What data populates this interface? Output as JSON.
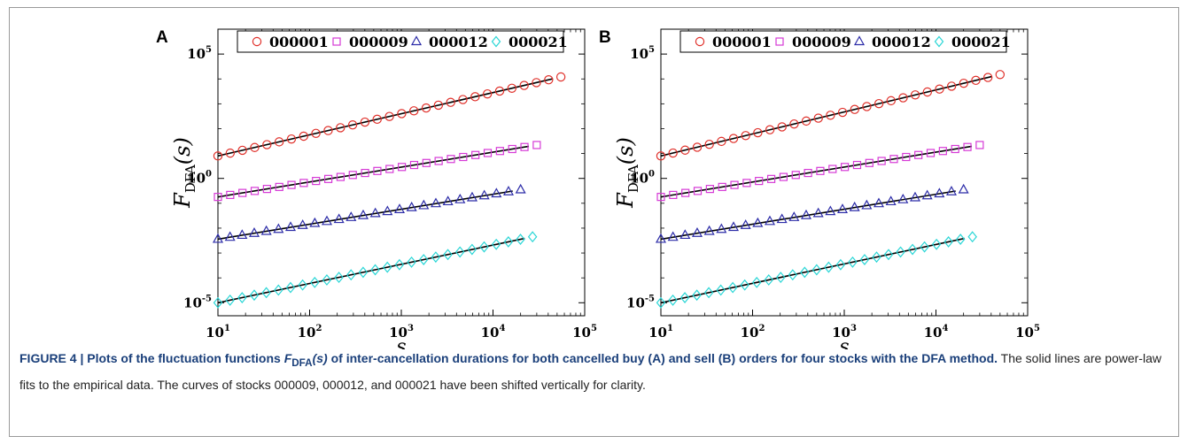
{
  "caption": {
    "title_part1": "FIGURE 4 | Plots of the fluctuation functions ",
    "title_symbol": "F",
    "title_symbol_sub": "DFA",
    "title_symbol_arg": "(s)",
    "title_part2": " of inter-cancellation durations for both cancelled buy (A) and sell (B) orders for four stocks with the DFA method.",
    "body": " The solid lines are power-law fits to the empirical data. The curves of stocks 000009, 000012, and 000021 have been shifted vertically for clarity."
  },
  "colors": {
    "000001": "#e0302a",
    "000009": "#d63ad6",
    "000012": "#2c2ca8",
    "000021": "#2ad6d6",
    "fit": "#000000"
  },
  "chart_data": [
    {
      "panel_label": "A",
      "type": "scatter",
      "log_x": true,
      "log_y": true,
      "xlabel": "s",
      "ylabel": "F_DFA(s)",
      "xlim": [
        10,
        100000
      ],
      "ylim": [
        3e-06,
        1000000
      ],
      "xticks": [
        "10^1",
        "10^2",
        "10^3",
        "10^4",
        "10^5"
      ],
      "yticks": [
        "10^-5",
        "10^0",
        "10^5"
      ],
      "legend_position": "top",
      "fit_lines": true,
      "series": [
        {
          "name": "000001",
          "marker": "circle",
          "x_start": 10,
          "x_end": 55000,
          "y_start": 8.0,
          "y_end": 12000,
          "n": 29
        },
        {
          "name": "000009",
          "marker": "square",
          "x_start": 10,
          "x_end": 30000,
          "y_start": 0.18,
          "y_end": 22,
          "n": 27
        },
        {
          "name": "000012",
          "marker": "triangle",
          "x_start": 10,
          "x_end": 20000,
          "y_start": 0.0036,
          "y_end": 0.35,
          "n": 26
        },
        {
          "name": "000021",
          "marker": "diamond",
          "x_start": 10,
          "x_end": 27000,
          "y_start": 1e-05,
          "y_end": 0.0045,
          "n": 27
        }
      ]
    },
    {
      "panel_label": "B",
      "type": "scatter",
      "log_x": true,
      "log_y": true,
      "xlabel": "s",
      "ylabel": "F_DFA(s)",
      "xlim": [
        10,
        100000
      ],
      "ylim": [
        3e-06,
        1000000
      ],
      "xticks": [
        "10^1",
        "10^2",
        "10^3",
        "10^4",
        "10^5"
      ],
      "yticks": [
        "10^-5",
        "10^0",
        "10^5"
      ],
      "legend_position": "top",
      "fit_lines": true,
      "series": [
        {
          "name": "000001",
          "marker": "circle",
          "x_start": 10,
          "x_end": 50000,
          "y_start": 8.0,
          "y_end": 15000,
          "n": 29
        },
        {
          "name": "000009",
          "marker": "square",
          "x_start": 10,
          "x_end": 30000,
          "y_start": 0.18,
          "y_end": 22,
          "n": 27
        },
        {
          "name": "000012",
          "marker": "triangle",
          "x_start": 10,
          "x_end": 20000,
          "y_start": 0.0036,
          "y_end": 0.35,
          "n": 26
        },
        {
          "name": "000021",
          "marker": "diamond",
          "x_start": 10,
          "x_end": 25000,
          "y_start": 1e-05,
          "y_end": 0.0045,
          "n": 27
        }
      ]
    }
  ]
}
